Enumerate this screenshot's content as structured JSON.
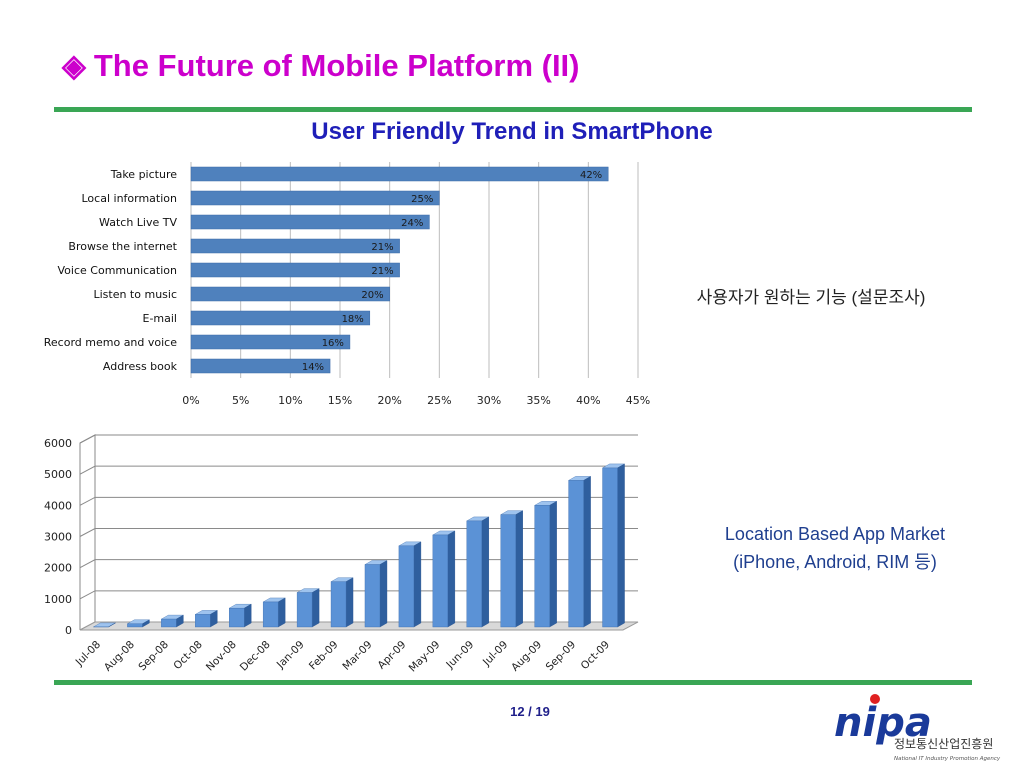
{
  "slide": {
    "title": "The Future of Mobile Platform (II)",
    "title_bullet": "◈",
    "subtitle": "User Friendly Trend in SmartPhone",
    "caption_survey": "사용자가 원하는 기능 (설문조사)",
    "caption_market_line1": "Location Based App Market",
    "caption_market_line2": "(iPhone, Android, RIM 등)",
    "page_number": "12 / 19",
    "colors": {
      "title": "#cc00cc",
      "subtitle": "#1f1fb8",
      "rule": "#3aa655",
      "bar": "#4f81bd"
    }
  },
  "logo": {
    "mark": "nipa",
    "korean_name": "정보통신산업진흥원",
    "english_name": "National IT Industry Promotion Agency"
  },
  "chart_data": [
    {
      "type": "bar",
      "orientation": "horizontal",
      "categories": [
        "Take picture",
        "Local information",
        "Watch Live TV",
        "Browse the internet",
        "Voice Communication",
        "Listen to music",
        "E-mail",
        "Record memo and voice",
        "Address book"
      ],
      "values": [
        42,
        25,
        24,
        21,
        21,
        20,
        18,
        16,
        14
      ],
      "data_labels": [
        "42%",
        "25%",
        "24%",
        "21%",
        "21%",
        "20%",
        "18%",
        "16%",
        "14%"
      ],
      "xlim": [
        0,
        45
      ],
      "xticks": [
        "0%",
        "5%",
        "10%",
        "15%",
        "20%",
        "25%",
        "30%",
        "35%",
        "40%",
        "45%"
      ],
      "grid": "vertical"
    },
    {
      "type": "bar",
      "style": "3d-column",
      "categories": [
        "Jul-08",
        "Aug-08",
        "Sep-08",
        "Oct-08",
        "Nov-08",
        "Dec-08",
        "Jan-09",
        "Feb-09",
        "Mar-09",
        "Apr-09",
        "May-09",
        "Jun-09",
        "Jul-09",
        "Aug-09",
        "Sep-09",
        "Oct-09"
      ],
      "values": [
        100,
        200,
        350,
        500,
        700,
        900,
        1200,
        1550,
        2100,
        2700,
        3050,
        3500,
        3700,
        4000,
        4800,
        5200
      ],
      "ylim": [
        0,
        6000
      ],
      "yticks": [
        "0",
        "1000",
        "2000",
        "3000",
        "4000",
        "5000",
        "6000"
      ],
      "grid": "horizontal"
    }
  ]
}
